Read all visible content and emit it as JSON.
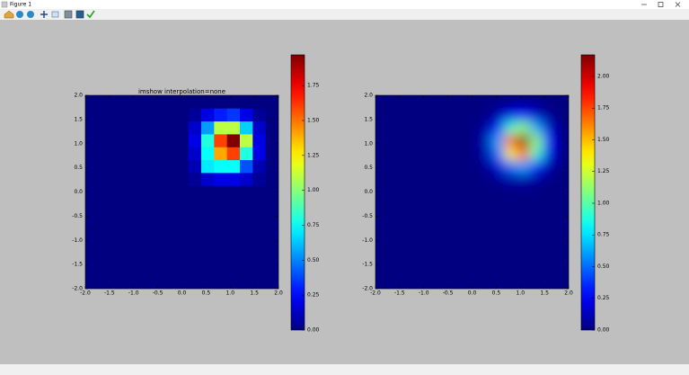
{
  "window": {
    "title": "Figure 1"
  },
  "chart_data": [
    {
      "type": "heatmap",
      "title": "imshow interpolation=none",
      "cmap": "jet",
      "smooth": false,
      "xlim": [
        -2,
        2
      ],
      "ylim": [
        -2,
        2
      ],
      "xticks": [
        {
          "value": -2,
          "label": "-2.0"
        },
        {
          "value": -1.5,
          "label": "-1.5"
        },
        {
          "value": -1,
          "label": "-1.0"
        },
        {
          "value": -0.5,
          "label": "-0.5"
        },
        {
          "value": 0,
          "label": "0.0"
        },
        {
          "value": 0.5,
          "label": "0.5"
        },
        {
          "value": 1,
          "label": "1.0"
        },
        {
          "value": 1.5,
          "label": "1.5"
        },
        {
          "value": 2,
          "label": "2.0"
        }
      ],
      "yticks": [
        {
          "value": -2,
          "label": "-2.0"
        },
        {
          "value": -1.5,
          "label": "-1.5"
        },
        {
          "value": -1,
          "label": "-1.0"
        },
        {
          "value": -0.5,
          "label": "-0.5"
        },
        {
          "value": 0,
          "label": "0.0"
        },
        {
          "value": 0.5,
          "label": "0.5"
        },
        {
          "value": 1,
          "label": "1.0"
        },
        {
          "value": 1.5,
          "label": "1.5"
        },
        {
          "value": 2,
          "label": "2.0"
        }
      ],
      "z": [
        [
          0,
          0,
          0,
          0,
          0,
          0,
          0,
          0,
          0,
          0,
          0,
          0,
          0,
          0,
          0
        ],
        [
          0,
          0,
          0,
          0,
          0,
          0,
          0,
          0,
          0,
          0,
          0,
          0,
          0,
          0,
          0
        ],
        [
          0,
          0,
          0,
          0,
          0,
          0,
          0,
          0,
          0,
          0,
          0,
          0,
          0,
          0,
          0
        ],
        [
          0,
          0,
          0,
          0,
          0,
          0,
          0,
          0,
          0,
          0,
          0,
          0,
          0,
          0,
          0
        ],
        [
          0,
          0,
          0,
          0,
          0,
          0,
          0,
          0,
          0,
          0,
          0,
          0,
          0,
          0,
          0
        ],
        [
          0,
          0,
          0,
          0,
          0,
          0,
          0,
          0,
          0,
          0,
          0,
          0,
          0,
          0,
          0
        ],
        [
          0,
          0,
          0,
          0,
          0,
          0,
          0,
          0,
          0,
          0,
          0,
          0,
          0,
          0,
          0
        ],
        [
          0,
          0,
          0,
          0,
          0,
          0,
          0,
          0,
          0,
          0,
          0,
          0,
          0,
          0,
          0
        ],
        [
          0,
          0,
          0,
          0,
          0,
          0,
          0,
          0,
          0.05,
          0.15,
          0.2,
          0.2,
          0.15,
          0.05,
          0
        ],
        [
          0,
          0,
          0,
          0,
          0,
          0,
          0,
          0,
          0.1,
          0.7,
          0.75,
          0.75,
          0.4,
          0.1,
          0
        ],
        [
          0,
          0,
          0,
          0,
          0,
          0,
          0,
          0,
          0.15,
          0.75,
          1.4,
          1.6,
          0.8,
          0.2,
          0
        ],
        [
          0,
          0,
          0,
          0,
          0,
          0,
          0,
          0,
          0.2,
          0.8,
          1.6,
          1.97,
          1.1,
          0.2,
          0
        ],
        [
          0,
          0,
          0,
          0,
          0,
          0,
          0,
          0,
          0.15,
          0.55,
          1.1,
          1.1,
          0.65,
          0.15,
          0
        ],
        [
          0,
          0,
          0,
          0,
          0,
          0,
          0,
          0,
          0.05,
          0.2,
          0.3,
          0.35,
          0.2,
          0.05,
          0
        ],
        [
          0,
          0,
          0,
          0,
          0,
          0,
          0,
          0,
          0,
          0,
          0,
          0,
          0,
          0,
          0
        ]
      ],
      "colorbar": {
        "lim": [
          0,
          1.97
        ],
        "ticks": [
          {
            "value": 0,
            "label": "0.00"
          },
          {
            "value": 0.25,
            "label": "0.25"
          },
          {
            "value": 0.5,
            "label": "0.50"
          },
          {
            "value": 0.75,
            "label": "0.75"
          },
          {
            "value": 1,
            "label": "1.00"
          },
          {
            "value": 1.25,
            "label": "1.25"
          },
          {
            "value": 1.5,
            "label": "1.50"
          },
          {
            "value": 1.75,
            "label": "1.75"
          }
        ]
      }
    },
    {
      "type": "heatmap",
      "cmap": "jet",
      "smooth": true,
      "xlim": [
        -2,
        2
      ],
      "ylim": [
        -2,
        2
      ],
      "xticks": [
        {
          "value": -2,
          "label": "-2.0"
        },
        {
          "value": -1.5,
          "label": "-1.5"
        },
        {
          "value": -1,
          "label": "-1.0"
        },
        {
          "value": -0.5,
          "label": "-0.5"
        },
        {
          "value": 0,
          "label": "0.0"
        },
        {
          "value": 0.5,
          "label": "0.5"
        },
        {
          "value": 1,
          "label": "1.0"
        },
        {
          "value": 1.5,
          "label": "1.5"
        },
        {
          "value": 2,
          "label": "2.0"
        }
      ],
      "yticks": [
        {
          "value": -2,
          "label": "-2.0"
        },
        {
          "value": -1.5,
          "label": "-1.5"
        },
        {
          "value": -1,
          "label": "-1.0"
        },
        {
          "value": -0.5,
          "label": "-0.5"
        },
        {
          "value": 0,
          "label": "0.0"
        },
        {
          "value": 0.5,
          "label": "0.5"
        },
        {
          "value": 1,
          "label": "1.0"
        },
        {
          "value": 1.5,
          "label": "1.5"
        },
        {
          "value": 2,
          "label": "2.0"
        }
      ],
      "z": [
        [
          0,
          0,
          0,
          0,
          0,
          0,
          0,
          0,
          0,
          0,
          0,
          0,
          0,
          0,
          0
        ],
        [
          0,
          0,
          0,
          0,
          0,
          0,
          0,
          0,
          0,
          0,
          0,
          0,
          0,
          0,
          0
        ],
        [
          0,
          0,
          0,
          0,
          0,
          0,
          0,
          0,
          0,
          0,
          0,
          0,
          0,
          0,
          0
        ],
        [
          0,
          0,
          0,
          0,
          0,
          0,
          0,
          0,
          0,
          0,
          0,
          0,
          0,
          0,
          0
        ],
        [
          0,
          0,
          0,
          0,
          0,
          0,
          0,
          0,
          0,
          0,
          0,
          0,
          0,
          0,
          0
        ],
        [
          0,
          0,
          0,
          0,
          0,
          0,
          0,
          0,
          0,
          0,
          0,
          0,
          0,
          0,
          0
        ],
        [
          0,
          0,
          0,
          0,
          0,
          0,
          0,
          0,
          0,
          0,
          0,
          0,
          0,
          0,
          0
        ],
        [
          0,
          0,
          0,
          0,
          0,
          0,
          0,
          0,
          0,
          0,
          0,
          0,
          0,
          0,
          0
        ],
        [
          0,
          0,
          0,
          0,
          0,
          0,
          0,
          0,
          0.01,
          0.03,
          0.09,
          0.1,
          0.06,
          0.01,
          0
        ],
        [
          0,
          0,
          0,
          0,
          0,
          0,
          0,
          0,
          0.03,
          0.19,
          0.51,
          0.62,
          0.34,
          0.09,
          0
        ],
        [
          0,
          0,
          0,
          0,
          0,
          0,
          0,
          0,
          0.09,
          0.51,
          1.38,
          1.68,
          0.93,
          0.23,
          0
        ],
        [
          0,
          0,
          0,
          0,
          0,
          0,
          0,
          0,
          0.1,
          0.62,
          1.68,
          2.17,
          1.13,
          0.28,
          0
        ],
        [
          0,
          0,
          0,
          0,
          0,
          0,
          0,
          0,
          0.06,
          0.34,
          0.93,
          1.13,
          0.63,
          0.16,
          0
        ],
        [
          0,
          0,
          0,
          0,
          0,
          0,
          0,
          0,
          0.01,
          0.09,
          0.23,
          0.28,
          0.16,
          0.04,
          0
        ],
        [
          0,
          0,
          0,
          0,
          0,
          0,
          0,
          0,
          0,
          0.01,
          0.03,
          0.03,
          0.02,
          0,
          0
        ]
      ],
      "colorbar": {
        "lim": [
          0,
          2.17
        ],
        "ticks": [
          {
            "value": 0,
            "label": "0.00"
          },
          {
            "value": 0.25,
            "label": "0.25"
          },
          {
            "value": 0.5,
            "label": "0.50"
          },
          {
            "value": 0.75,
            "label": "0.75"
          },
          {
            "value": 1,
            "label": "1.00"
          },
          {
            "value": 1.25,
            "label": "1.25"
          },
          {
            "value": 1.5,
            "label": "1.50"
          },
          {
            "value": 1.75,
            "label": "1.75"
          },
          {
            "value": 2,
            "label": "2.00"
          }
        ]
      }
    }
  ]
}
